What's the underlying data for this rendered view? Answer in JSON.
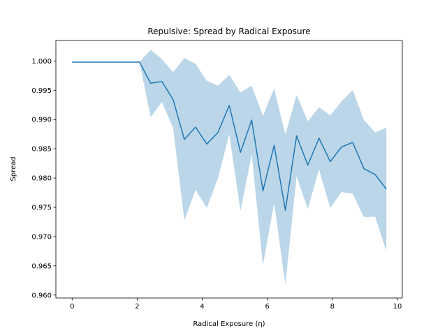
{
  "chart_data": {
    "type": "line",
    "title": "Repulsive: Spread by Radical Exposure",
    "xlabel": "Radical Exposure (η)",
    "ylabel": "Spread",
    "xlim": [
      -0.5,
      10.15
    ],
    "ylim": [
      0.9595,
      1.0035
    ],
    "x_ticks": [
      0,
      2,
      4,
      6,
      8,
      10
    ],
    "x_tick_labels": [
      "0",
      "2",
      "4",
      "6",
      "8",
      "10"
    ],
    "y_ticks": [
      0.96,
      0.965,
      0.97,
      0.975,
      0.98,
      0.985,
      0.99,
      0.995,
      1.0
    ],
    "y_tick_labels": [
      "0.960",
      "0.965",
      "0.970",
      "0.975",
      "0.980",
      "0.985",
      "0.990",
      "0.995",
      "1.000"
    ],
    "grid": false,
    "colors": {
      "line": "#1f77b4",
      "band": "#1f77b4"
    },
    "series": [
      {
        "x": [
          0,
          0.345,
          0.69,
          1.035,
          1.38,
          1.725,
          2.07,
          2.415,
          2.76,
          3.105,
          3.45,
          3.795,
          4.14,
          4.485,
          4.83,
          5.175,
          5.52,
          5.865,
          6.21,
          6.555,
          6.9,
          7.245,
          7.59,
          7.935,
          8.28,
          8.625,
          8.97,
          9.315,
          9.66
        ],
        "y": [
          0.9998,
          0.9998,
          0.9998,
          0.9998,
          0.9998,
          0.9998,
          0.9998,
          0.9962,
          0.9965,
          0.9934,
          0.9866,
          0.9887,
          0.9858,
          0.9878,
          0.9924,
          0.9844,
          0.9899,
          0.9778,
          0.9856,
          0.9745,
          0.9872,
          0.9822,
          0.9868,
          0.9828,
          0.9853,
          0.9861,
          0.9816,
          0.9806,
          0.9781
        ],
        "lower": [
          0.9998,
          0.9998,
          0.9998,
          0.9998,
          0.9998,
          0.9998,
          0.9998,
          0.9904,
          0.993,
          0.9885,
          0.9728,
          0.978,
          0.9749,
          0.98,
          0.9875,
          0.9744,
          0.984,
          0.9651,
          0.9757,
          0.9618,
          0.9803,
          0.9747,
          0.9815,
          0.9749,
          0.9776,
          0.9773,
          0.9733,
          0.9734,
          0.9675
        ],
        "upper": [
          0.9998,
          0.9998,
          0.9998,
          0.9998,
          0.9998,
          0.9998,
          0.9998,
          1.0019,
          1.0003,
          0.9981,
          1.0005,
          0.9995,
          0.9966,
          0.9958,
          0.9976,
          0.9946,
          0.9958,
          0.9906,
          0.9953,
          0.9874,
          0.9942,
          0.9897,
          0.9921,
          0.9907,
          0.9931,
          0.995,
          0.9899,
          0.9878,
          0.9886
        ]
      }
    ]
  }
}
